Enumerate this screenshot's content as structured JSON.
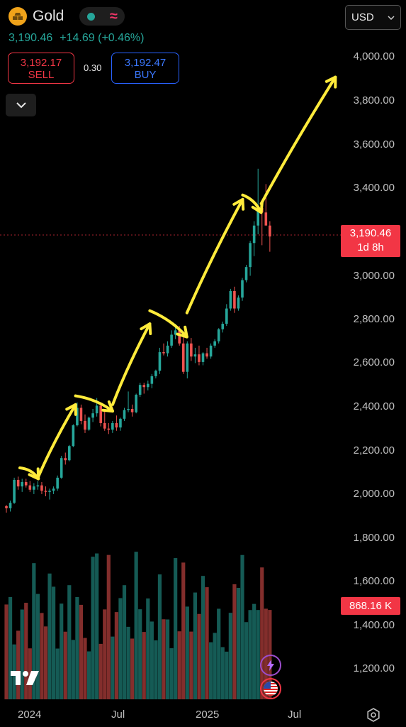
{
  "header": {
    "symbol_name": "Gold",
    "symbol_icon": "gold-bars-icon",
    "market_status_icon": "market-open-dot-icon",
    "wave_icon": "pre-post-market-icon",
    "last_price": "3,190.46",
    "change": "+14.69 (+0.46%)"
  },
  "trade": {
    "sell_price": "3,192.17",
    "sell_label": "SELL",
    "spread": "0.30",
    "buy_price": "3,192.47",
    "buy_label": "BUY"
  },
  "currency_selector": {
    "value": "USD"
  },
  "price_axis": {
    "labels": [
      "4,000.00",
      "3,800.00",
      "3,600.00",
      "3,400.00",
      "3,000.00",
      "2,800.00",
      "2,600.00",
      "2,400.00",
      "2,200.00",
      "2,000.00",
      "1,800.00",
      "1,600.00",
      "1,400.00",
      "1,200.00"
    ],
    "current_price_label": "3,190.46",
    "countdown": "1d 8h",
    "volume_label": "868.16 K"
  },
  "time_axis": {
    "labels": [
      "2024",
      "Jul",
      "2025",
      "Jul"
    ]
  },
  "colors": {
    "up": "#26a69a",
    "down": "#ef5350",
    "annotation": "#ffeb3b",
    "accent_red": "#f23645",
    "accent_blue": "#2962ff"
  },
  "chart_data": {
    "type": "candlestick",
    "interval": "weekly",
    "ylim": [
      1140,
      4100
    ],
    "candles": [
      [
        1955,
        1960,
        1925,
        1945
      ],
      [
        1945,
        1980,
        1930,
        1970
      ],
      [
        1970,
        2085,
        1965,
        2075
      ],
      [
        2075,
        2090,
        2030,
        2045
      ],
      [
        2045,
        2080,
        2020,
        2065
      ],
      [
        2065,
        2080,
        2040,
        2050
      ],
      [
        2050,
        2070,
        2020,
        2030
      ],
      [
        2030,
        2060,
        2010,
        2045
      ],
      [
        2045,
        2070,
        2030,
        2050
      ],
      [
        2050,
        2065,
        2010,
        2025
      ],
      [
        2025,
        2045,
        2000,
        2020
      ],
      [
        2020,
        2035,
        1985,
        2025
      ],
      [
        2025,
        2045,
        2010,
        2035
      ],
      [
        2035,
        2095,
        2025,
        2085
      ],
      [
        2085,
        2185,
        2080,
        2175
      ],
      [
        2175,
        2200,
        2145,
        2165
      ],
      [
        2165,
        2235,
        2160,
        2230
      ],
      [
        2230,
        2330,
        2225,
        2325
      ],
      [
        2325,
        2430,
        2320,
        2405
      ],
      [
        2405,
        2420,
        2330,
        2345
      ],
      [
        2345,
        2375,
        2290,
        2305
      ],
      [
        2305,
        2365,
        2300,
        2360
      ],
      [
        2360,
        2400,
        2340,
        2380
      ],
      [
        2380,
        2450,
        2365,
        2415
      ],
      [
        2415,
        2430,
        2320,
        2335
      ],
      [
        2335,
        2395,
        2300,
        2310
      ],
      [
        2310,
        2335,
        2285,
        2305
      ],
      [
        2305,
        2345,
        2290,
        2335
      ],
      [
        2335,
        2370,
        2300,
        2315
      ],
      [
        2315,
        2360,
        2300,
        2355
      ],
      [
        2355,
        2405,
        2345,
        2395
      ],
      [
        2395,
        2480,
        2385,
        2400
      ],
      [
        2400,
        2420,
        2365,
        2385
      ],
      [
        2385,
        2470,
        2380,
        2465
      ],
      [
        2465,
        2520,
        2455,
        2510
      ],
      [
        2510,
        2520,
        2470,
        2500
      ],
      [
        2500,
        2530,
        2485,
        2515
      ],
      [
        2515,
        2560,
        2495,
        2550
      ],
      [
        2550,
        2580,
        2540,
        2575
      ],
      [
        2575,
        2680,
        2560,
        2660
      ],
      [
        2660,
        2700,
        2645,
        2655
      ],
      [
        2655,
        2710,
        2640,
        2690
      ],
      [
        2690,
        2760,
        2680,
        2740
      ],
      [
        2740,
        2790,
        2720,
        2760
      ],
      [
        2760,
        2780,
        2690,
        2700
      ],
      [
        2700,
        2730,
        2560,
        2570
      ],
      [
        2570,
        2710,
        2540,
        2700
      ],
      [
        2700,
        2725,
        2620,
        2640
      ],
      [
        2640,
        2680,
        2610,
        2650
      ],
      [
        2650,
        2690,
        2600,
        2615
      ],
      [
        2615,
        2660,
        2600,
        2655
      ],
      [
        2655,
        2680,
        2630,
        2640
      ],
      [
        2640,
        2700,
        2630,
        2690
      ],
      [
        2690,
        2720,
        2680,
        2710
      ],
      [
        2710,
        2770,
        2700,
        2765
      ],
      [
        2765,
        2800,
        2750,
        2790
      ],
      [
        2790,
        2880,
        2780,
        2860
      ],
      [
        2860,
        2950,
        2850,
        2940
      ],
      [
        2940,
        2960,
        2840,
        2860
      ],
      [
        2860,
        2920,
        2850,
        2910
      ],
      [
        2910,
        3000,
        2895,
        2990
      ],
      [
        2990,
        3060,
        2980,
        3050
      ],
      [
        3050,
        3170,
        3010,
        3160
      ],
      [
        3160,
        3260,
        3100,
        3240
      ],
      [
        3240,
        3500,
        3200,
        3320
      ],
      [
        3320,
        3340,
        3150,
        3300
      ],
      [
        3300,
        3430,
        3260,
        3240
      ],
      [
        3240,
        3260,
        3120,
        3190
      ]
    ],
    "volume_scale": "relative",
    "annotations": [
      {
        "from": [
          2024.0,
          2130
        ],
        "to": [
          2024.1,
          2080
        ]
      },
      {
        "from": [
          2024.1,
          2090
        ],
        "to": [
          2024.3,
          2420
        ]
      },
      {
        "from": [
          2024.3,
          2460
        ],
        "to": [
          2024.5,
          2390
        ]
      },
      {
        "from": [
          2024.5,
          2420
        ],
        "to": [
          2024.7,
          2790
        ]
      },
      {
        "from": [
          2024.7,
          2850
        ],
        "to": [
          2024.9,
          2730
        ]
      },
      {
        "from": [
          2024.9,
          2840
        ],
        "to": [
          2025.2,
          3360
        ]
      },
      {
        "from": [
          2025.2,
          3380
        ],
        "to": [
          2025.3,
          3300
        ]
      },
      {
        "from": [
          2025.3,
          3340
        ],
        "to": [
          2025.7,
          3920
        ]
      }
    ]
  },
  "toolbar": {
    "logo": "tradingview-logo",
    "alert_icon": "lightning-icon",
    "flag_icon": "us-flag-icon",
    "settings_icon": "settings-gear-icon"
  }
}
